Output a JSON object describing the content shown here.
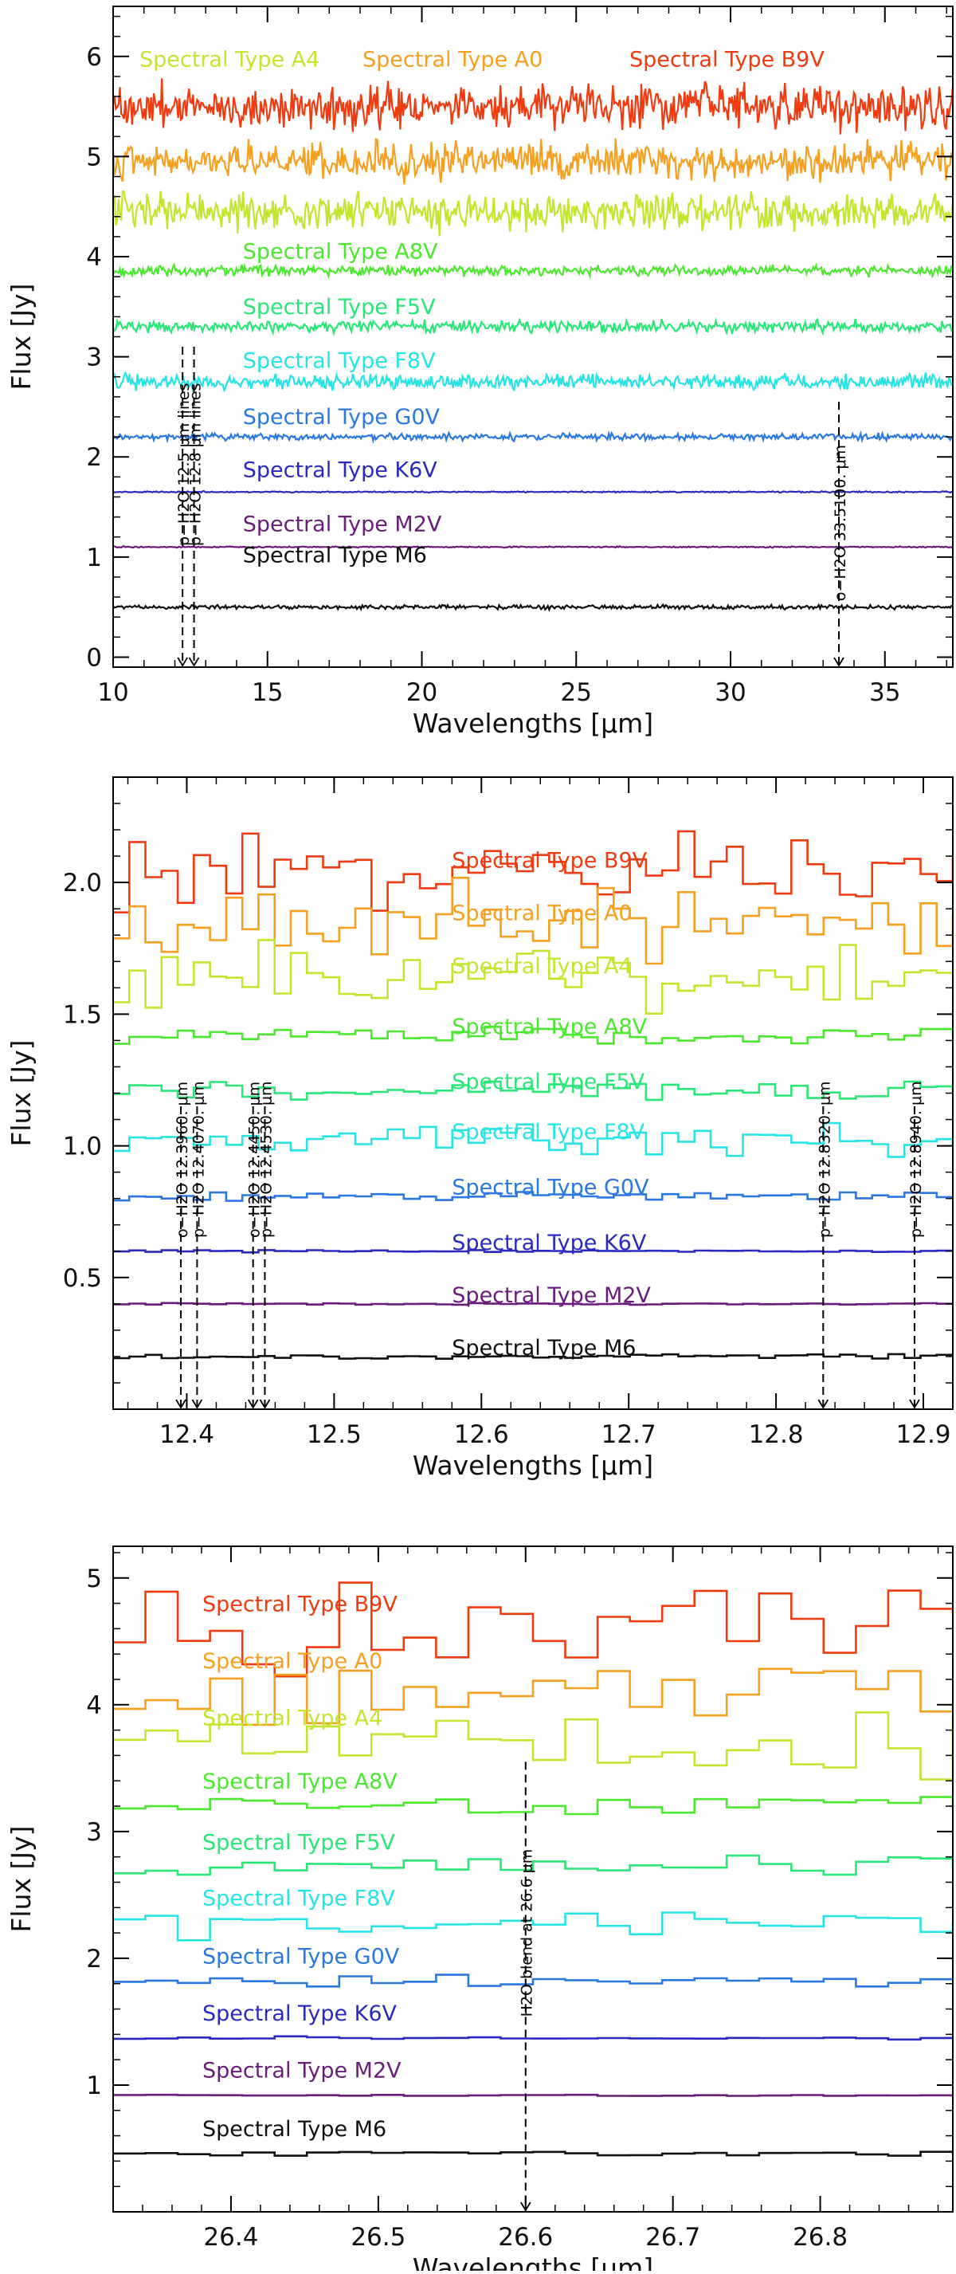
{
  "chart_data": [
    {
      "type": "line",
      "title": "",
      "xlabel": "Wavelengths [μm]",
      "ylabel": "Flux [Jy]",
      "xlim": [
        10,
        37.2
      ],
      "ylim": [
        -0.1,
        6.5
      ],
      "xticks": [
        10,
        15,
        20,
        25,
        30,
        35
      ],
      "xticklabels": [
        "10",
        "15",
        "20",
        "25",
        "30",
        "35"
      ],
      "yticks": [
        0,
        1,
        2,
        3,
        4,
        5,
        6
      ],
      "yticklabels": [
        "0",
        "1",
        "2",
        "3",
        "4",
        "5",
        "6"
      ],
      "series": [
        {
          "name": "Spectral Type B9V",
          "color": "#f03a10",
          "base": 5.5,
          "noise": 0.13,
          "label_x": 10.3,
          "label_y": 5.98
        },
        {
          "name": "Spectral Type A0",
          "color": "#f5a020",
          "base": 4.95,
          "noise": 0.11,
          "label_x": 10.3,
          "label_y": 5.98
        },
        {
          "name": "Spectral Type A4",
          "color": "#c3e52e",
          "base": 4.45,
          "noise": 0.11,
          "label_x": 10.3,
          "label_y": 5.98
        },
        {
          "name": "Spectral Type A8V",
          "color": "#4ce830",
          "base": 3.86,
          "noise": 0.03,
          "label_x": 14.2,
          "label_y": 4.05
        },
        {
          "name": "Spectral Type F5V",
          "color": "#2ae676",
          "base": 3.3,
          "noise": 0.035,
          "label_x": 14.2,
          "label_y": 3.5
        },
        {
          "name": "Spectral Type F8V",
          "color": "#27e4e4",
          "base": 2.75,
          "noise": 0.045,
          "label_x": 14.2,
          "label_y": 2.96
        },
        {
          "name": "Spectral Type G0V",
          "color": "#2a78e0",
          "base": 2.2,
          "noise": 0.02,
          "label_x": 14.2,
          "label_y": 2.4
        },
        {
          "name": "Spectral Type K6V",
          "color": "#2a2ac0",
          "base": 1.65,
          "noise": 0.004,
          "label_x": 14.2,
          "label_y": 1.87
        },
        {
          "name": "Spectral Type M2V",
          "color": "#6a1c7a",
          "base": 1.1,
          "noise": 0.004,
          "label_x": 14.2,
          "label_y": 1.33
        },
        {
          "name": "Spectral Type M6",
          "color": "#111111",
          "base": 0.5,
          "noise": 0.012,
          "label_x": 14.2,
          "label_y": 1.02
        }
      ],
      "annotations": [
        {
          "text": "p−H2O  12.5 μm lines",
          "x": 12.25,
          "y_top": 3.1
        },
        {
          "text": "p−H2O  12.8 μm lines",
          "x": 12.62,
          "y_top": 3.1
        },
        {
          "text": "o−H2O  33.5100. μm",
          "x": 33.51,
          "y_top": 2.55
        }
      ]
    },
    {
      "type": "line",
      "title": "",
      "xlabel": "Wavelengths [μm]",
      "ylabel": "Flux [Jy]",
      "xlim": [
        12.35,
        12.92
      ],
      "ylim": [
        0.0,
        2.4
      ],
      "xticks": [
        12.4,
        12.5,
        12.6,
        12.7,
        12.8,
        12.9
      ],
      "xticklabels": [
        "12.4",
        "12.5",
        "12.6",
        "12.7",
        "12.8",
        "12.9"
      ],
      "yticks": [
        0.5,
        1.0,
        1.5,
        2.0
      ],
      "yticklabels": [
        "0.5",
        "1.0",
        "1.5",
        "2.0"
      ],
      "series": [
        {
          "name": "Spectral Type B9V",
          "color": "#f03a10",
          "base": 2.05,
          "noise": 0.09
        },
        {
          "name": "Spectral Type A0",
          "color": "#f5a020",
          "base": 1.85,
          "noise": 0.09
        },
        {
          "name": "Spectral Type A4",
          "color": "#c3e52e",
          "base": 1.65,
          "noise": 0.09
        },
        {
          "name": "Spectral Type A8V",
          "color": "#4ce830",
          "base": 1.42,
          "noise": 0.02
        },
        {
          "name": "Spectral Type F5V",
          "color": "#2ae676",
          "base": 1.21,
          "noise": 0.025
        },
        {
          "name": "Spectral Type F8V",
          "color": "#27e4e4",
          "base": 1.02,
          "noise": 0.04
        },
        {
          "name": "Spectral Type G0V",
          "color": "#2a78e0",
          "base": 0.81,
          "noise": 0.012
        },
        {
          "name": "Spectral Type K6V",
          "color": "#2a2ac0",
          "base": 0.6,
          "noise": 0.003
        },
        {
          "name": "Spectral Type M2V",
          "color": "#6a1c7a",
          "base": 0.4,
          "noise": 0.002
        },
        {
          "name": "Spectral Type M6",
          "color": "#111111",
          "base": 0.2,
          "noise": 0.005
        }
      ],
      "label_x": 12.58,
      "annotations": [
        {
          "text": "o−H2O  12.3960. μm",
          "x": 12.396,
          "y_top": 1.15
        },
        {
          "text": "p−H2O  12.4070. μm",
          "x": 12.407,
          "y_top": 1.15
        },
        {
          "text": "o−H2O  12.4450. μm",
          "x": 12.445,
          "y_top": 1.15
        },
        {
          "text": "p−H2O  12.4530. μm",
          "x": 12.453,
          "y_top": 1.15
        },
        {
          "text": "p−H2O  12.8320. μm",
          "x": 12.832,
          "y_top": 1.15
        },
        {
          "text": "p−H2O  12.8940. μm",
          "x": 12.894,
          "y_top": 1.15
        }
      ]
    },
    {
      "type": "line",
      "title": "",
      "xlabel": "Wavelengths [μm]",
      "ylabel": "Flux [Jy]",
      "xlim": [
        26.32,
        26.89
      ],
      "ylim": [
        0.0,
        5.25
      ],
      "xticks": [
        26.4,
        26.5,
        26.6,
        26.7,
        26.8
      ],
      "xticklabels": [
        "26.4",
        "26.5",
        "26.6",
        "26.7",
        "26.8"
      ],
      "yticks": [
        1,
        2,
        3,
        4,
        5
      ],
      "yticklabels": [
        "1",
        "2",
        "3",
        "4",
        "5"
      ],
      "series": [
        {
          "name": "Spectral Type B9V",
          "color": "#f03a10",
          "base": 4.6,
          "noise": 0.2
        },
        {
          "name": "Spectral Type A0",
          "color": "#f5a020",
          "base": 4.15,
          "noise": 0.18
        },
        {
          "name": "Spectral Type A4",
          "color": "#c3e52e",
          "base": 3.7,
          "noise": 0.2
        },
        {
          "name": "Spectral Type A8V",
          "color": "#4ce830",
          "base": 3.2,
          "noise": 0.05
        },
        {
          "name": "Spectral Type F5V",
          "color": "#2ae676",
          "base": 2.72,
          "noise": 0.06
        },
        {
          "name": "Spectral Type F8V",
          "color": "#27e4e4",
          "base": 2.28,
          "noise": 0.09
        },
        {
          "name": "Spectral Type G0V",
          "color": "#2a78e0",
          "base": 1.82,
          "noise": 0.03
        },
        {
          "name": "Spectral Type K6V",
          "color": "#2a2ac0",
          "base": 1.37,
          "noise": 0.008
        },
        {
          "name": "Spectral Type M2V",
          "color": "#6a1c7a",
          "base": 0.92,
          "noise": 0.004
        },
        {
          "name": "Spectral Type M6",
          "color": "#111111",
          "base": 0.46,
          "noise": 0.012
        }
      ],
      "label_x": 26.34,
      "annotations": [
        {
          "text": "H2O blend at 26.6 μm",
          "x": 26.6,
          "y_top": 3.55
        }
      ]
    }
  ]
}
